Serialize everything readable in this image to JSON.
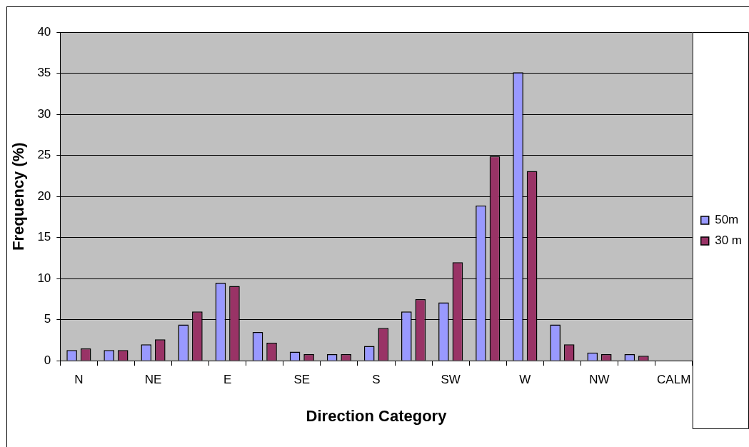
{
  "chart_data": {
    "type": "bar",
    "xlabel": "Direction Category",
    "ylabel": "Frequency (%)",
    "categories": [
      "N",
      null,
      "NE",
      null,
      "E",
      null,
      "SE",
      null,
      "S",
      null,
      "SW",
      null,
      "W",
      null,
      "NW",
      null,
      "CALM"
    ],
    "series": [
      {
        "name": "50m",
        "color": "#9999ff",
        "values": [
          1.3,
          1.3,
          2.0,
          4.4,
          9.5,
          3.5,
          1.1,
          0.8,
          1.8,
          6.0,
          7.1,
          18.9,
          35.1,
          4.4,
          1.0,
          0.8,
          null
        ]
      },
      {
        "name": "30 m",
        "color": "#993366",
        "values": [
          1.5,
          1.3,
          2.6,
          6.0,
          9.1,
          2.2,
          0.8,
          0.8,
          4.0,
          7.5,
          12.0,
          24.9,
          23.1,
          2.0,
          0.8,
          0.6,
          null
        ]
      }
    ],
    "ylim": [
      0,
      40
    ],
    "yticks": [
      0,
      5,
      10,
      15,
      20,
      25,
      30,
      35,
      40
    ],
    "grid": "y",
    "legend": "right"
  }
}
